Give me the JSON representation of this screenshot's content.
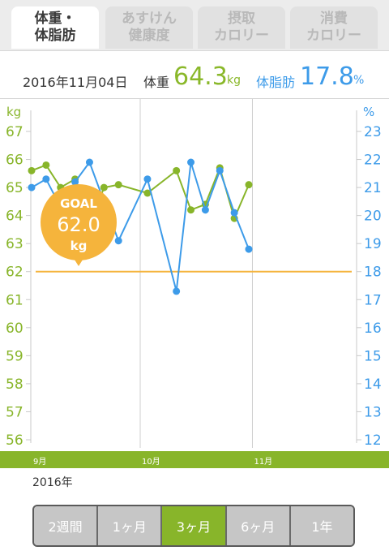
{
  "tabs": [
    {
      "line1": "体重・",
      "line2": "体脂肪",
      "active": true
    },
    {
      "line1": "あすけん",
      "line2": "健康度",
      "active": false
    },
    {
      "line1": "摂取",
      "line2": "カロリー",
      "active": false
    },
    {
      "line1": "消費",
      "line2": "カロリー",
      "active": false
    }
  ],
  "summary": {
    "date": "2016年11月04日",
    "weight_label": "体重",
    "weight_value": "64.3",
    "weight_unit": "kg",
    "fat_label": "体脂肪",
    "fat_value": "17.8",
    "fat_unit": "%"
  },
  "colors": {
    "weight": "#88b52a",
    "fat": "#3d9be9",
    "goal": "#f5b43c"
  },
  "goal": {
    "label": "GOAL",
    "value": "62.0",
    "unit": "kg",
    "weight": 62
  },
  "timeline": {
    "months": [
      {
        "label": "9月",
        "day": 0
      },
      {
        "label": "10月",
        "day": 30
      },
      {
        "label": "11月",
        "day": 61
      }
    ],
    "year": "2016年"
  },
  "chart_data": {
    "type": "line",
    "x_unit": "day",
    "xlim": [
      0,
      90
    ],
    "left_axis": {
      "unit": "kg",
      "ticks": [
        56,
        57,
        58,
        59,
        60,
        61,
        62,
        63,
        64,
        65,
        66,
        67
      ],
      "ylim": [
        56,
        67
      ]
    },
    "right_axis": {
      "unit": "%",
      "ticks": [
        12,
        13,
        14,
        15,
        16,
        17,
        18,
        19,
        20,
        21,
        22,
        23
      ],
      "ylim": [
        12,
        23
      ]
    },
    "series": [
      {
        "axis": "left",
        "points": [
          [
            0,
            65.6
          ],
          [
            4,
            65.8
          ],
          [
            8,
            65.0
          ],
          [
            12,
            65.3
          ],
          [
            16,
            63.6
          ],
          [
            20,
            65.0
          ],
          [
            24,
            65.1
          ],
          [
            32,
            64.8
          ],
          [
            40,
            65.6
          ],
          [
            44,
            64.2
          ],
          [
            48,
            64.4
          ],
          [
            52,
            65.7
          ],
          [
            56,
            63.9
          ],
          [
            60,
            65.1
          ]
        ]
      },
      {
        "axis": "right",
        "points": [
          [
            0,
            21.0
          ],
          [
            4,
            21.3
          ],
          [
            8,
            20.3
          ],
          [
            12,
            21.2
          ],
          [
            16,
            21.9
          ],
          [
            20,
            20.5
          ],
          [
            24,
            19.1
          ],
          [
            32,
            21.3
          ],
          [
            40,
            17.3
          ],
          [
            44,
            21.9
          ],
          [
            48,
            20.2
          ],
          [
            52,
            21.6
          ],
          [
            56,
            20.1
          ],
          [
            60,
            18.8
          ]
        ]
      }
    ]
  },
  "periods": {
    "options": [
      "2週間",
      "1ヶ月",
      "3ヶ月",
      "6ヶ月",
      "1年"
    ],
    "selected": 2
  }
}
